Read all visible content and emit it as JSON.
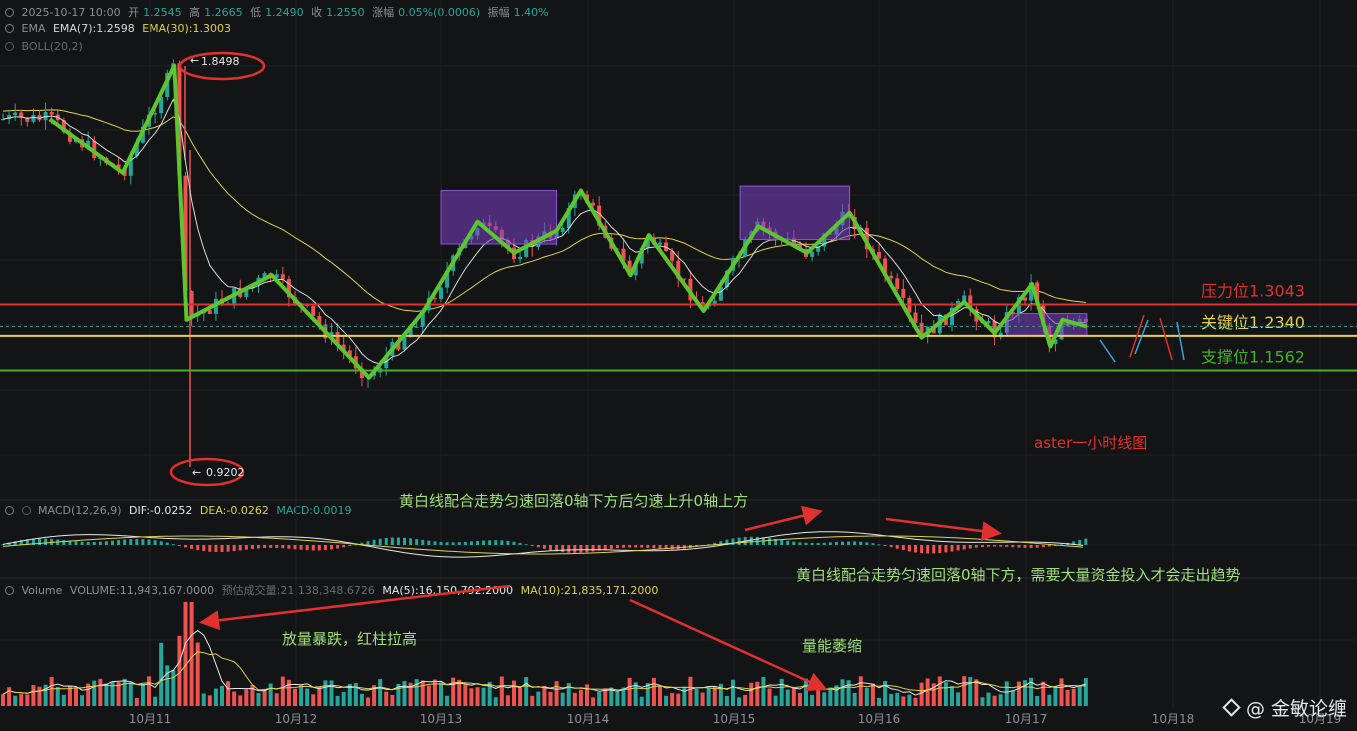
{
  "header": {
    "datetime": "2025-10-17 10:00",
    "open_label": "开",
    "open": "1.2545",
    "high_label": "高",
    "high": "1.2665",
    "low_label": "低",
    "low": "1.2490",
    "close_label": "收",
    "close": "1.2550",
    "change_label": "涨幅",
    "change": "0.05%(0.0006)",
    "amp_label": "振幅",
    "amp": "1.40%"
  },
  "ema": {
    "name": "EMA",
    "ema7": "EMA(7):1.2598",
    "ema30": "EMA(30):1.3003"
  },
  "boll": {
    "name": "BOLL(20,2)"
  },
  "macd_header": {
    "name": "MACD(12,26,9)",
    "dif": "DIF:-0.0252",
    "dea": "DEA:-0.0262",
    "macd": "MACD:0.0019"
  },
  "volume_header": {
    "name": "Volume",
    "volume": "VOLUME:11,943,167.0000",
    "est": "预估成交量:21,138,348.6726",
    "ma5": "MA(5):16,150,792.2000",
    "ma10": "MA(10):21,835,171.2000"
  },
  "watermark": "@ 金敏论缠",
  "colors": {
    "up": "#26a69a",
    "down": "#ef5350",
    "ema7": "#d9d9d9",
    "ema30": "#e0d24a",
    "zigzag": "#5cc62e",
    "resistance": "#e0312e",
    "key": "#e6d34a",
    "support": "#43b02a",
    "box": "#7a3fc4",
    "annotation": "#9fe07a",
    "arrow": "#e0312e",
    "title_note": "#e0312e"
  },
  "chart_data": [
    {
      "type": "candlestick",
      "title": "aster一小时线图",
      "x": [
        "10月11",
        "10月12",
        "10月13",
        "10月14",
        "10月15",
        "10月16",
        "10月17",
        "10月18",
        "10月19"
      ],
      "ylim": [
        0.85,
        2.0
      ],
      "series": [
        {
          "name": "",
          "points": [
            [
              "10月10 08:00",
              1.72
            ],
            [
              "10月10 20:00",
              1.6
            ],
            [
              "10月11 04:00",
              1.84
            ],
            [
              "10月11 06:00",
              1.27
            ],
            [
              "10月11 20:00",
              1.37
            ],
            [
              "10月12 12:00",
              1.14
            ],
            [
              "10月12 21:00",
              1.29
            ],
            [
              "10月13 06:00",
              1.49
            ],
            [
              "10月13 12:00",
              1.42
            ],
            [
              "10月13 19:00",
              1.47
            ],
            [
              "10月13 23:00",
              1.56
            ],
            [
              "10月14 07:00",
              1.37
            ],
            [
              "10月14 10:00",
              1.46
            ],
            [
              "10月14 19:00",
              1.29
            ],
            [
              "10月15 04:00",
              1.48
            ],
            [
              "10月15 12:00",
              1.42
            ],
            [
              "10月15 19:00",
              1.51
            ],
            [
              "10月16 07:00",
              1.23
            ],
            [
              "10月16 14:00",
              1.31
            ],
            [
              "10月16 19:00",
              1.24
            ],
            [
              "10月17 01:00",
              1.35
            ],
            [
              "10月17 04:00",
              1.21
            ],
            [
              "10月17 06:00",
              1.27
            ],
            [
              "10月17 10:00",
              1.255
            ]
          ]
        }
      ],
      "markers": {
        "high": "1.8498",
        "low": "0.9202"
      },
      "levels": [
        {
          "label": "压力位1.3043",
          "value": 1.3043
        },
        {
          "label": "关键位1.2340",
          "value": 1.234
        },
        {
          "label": "支撑位1.1562",
          "value": 1.1562
        }
      ]
    },
    {
      "type": "bar",
      "title": "MACD(12,26,9)",
      "annotations": [
        "黄白线配合走势匀速回落0轴下方后匀速上升0轴上方",
        "黄白线配合走势匀速回落0轴下方，需要大量资金投入才会走出趋势"
      ]
    },
    {
      "type": "bar",
      "title": "Volume",
      "annotations": [
        "放量暴跌，红柱拉高",
        "量能萎缩"
      ]
    }
  ]
}
